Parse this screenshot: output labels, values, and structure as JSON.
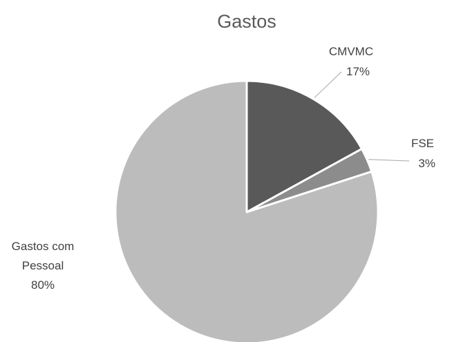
{
  "chart_data": {
    "type": "pie",
    "title": "Gastos",
    "slices": [
      {
        "label": "CMVMC",
        "percent_label": "17%",
        "value": 17,
        "color": "#595959"
      },
      {
        "label": "FSE",
        "percent_label": "3%",
        "value": 3,
        "color": "#8c8c8c"
      },
      {
        "label": "Gastos com Pessoal",
        "percent_label": "80%",
        "value": 80,
        "color": "#bcbcbc"
      }
    ],
    "start_angle": "12 o'clock",
    "direction": "clockwise",
    "legend": "none"
  }
}
